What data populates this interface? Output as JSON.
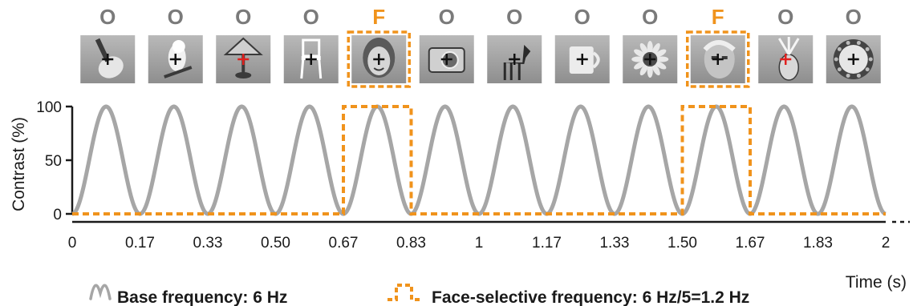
{
  "colors": {
    "base": "#a6a6a6",
    "face": "#f0931c",
    "object_label": "#7a7a7a",
    "axis": "#1a1a1a",
    "fixation_black": "#111111",
    "fixation_red": "#e0201e"
  },
  "stimuli": [
    {
      "label": "O",
      "category": "object",
      "subject": "guitar-icon",
      "cross": "black"
    },
    {
      "label": "O",
      "category": "object",
      "subject": "parrot-icon",
      "cross": "black"
    },
    {
      "label": "O",
      "category": "object",
      "subject": "lamp-icon",
      "cross": "red"
    },
    {
      "label": "O",
      "category": "object",
      "subject": "chair-icon",
      "cross": "black"
    },
    {
      "label": "F",
      "category": "face",
      "subject": "face-woman-icon",
      "cross": "black"
    },
    {
      "label": "O",
      "category": "object",
      "subject": "camera-icon",
      "cross": "black"
    },
    {
      "label": "O",
      "category": "object",
      "subject": "horse-icon",
      "cross": "black"
    },
    {
      "label": "O",
      "category": "object",
      "subject": "mug-icon",
      "cross": "black"
    },
    {
      "label": "O",
      "category": "object",
      "subject": "flower-icon",
      "cross": "black"
    },
    {
      "label": "F",
      "category": "face",
      "subject": "face-man-icon",
      "cross": "black"
    },
    {
      "label": "O",
      "category": "object",
      "subject": "pineapple-icon",
      "cross": "red"
    },
    {
      "label": "O",
      "category": "object",
      "subject": "plate-icon",
      "cross": "black"
    }
  ],
  "chart_data": {
    "type": "line",
    "ylabel": "Contrast (%)",
    "xlabel": "Time (s)",
    "xlim": [
      0,
      2
    ],
    "ylim": [
      0,
      100
    ],
    "yticks": [
      0,
      50,
      100
    ],
    "xticks": [
      0,
      0.1667,
      0.3333,
      0.5,
      0.6667,
      0.8333,
      1,
      1.1667,
      1.3333,
      1.5,
      1.6667,
      1.8333,
      2
    ],
    "xtick_labels": [
      "0",
      "0.17",
      "0.33",
      "0.50",
      "0.67",
      "0.83",
      "1",
      "1.17",
      "1.33",
      "1.50",
      "1.67",
      "1.83",
      "2"
    ],
    "series": [
      {
        "name": "Base frequency: 6 Hz",
        "kind": "sinusoid",
        "frequency_hz": 6,
        "min": 0,
        "max": 100,
        "style": "solid"
      },
      {
        "name": "Face-selective frequency: 6 Hz/5=1.2 Hz",
        "kind": "square",
        "style": "dashed",
        "x": [
          0,
          0.6667,
          0.6667,
          0.8333,
          0.8333,
          1.5,
          1.5,
          1.6667,
          1.6667,
          2
        ],
        "y": [
          0,
          0,
          100,
          100,
          0,
          0,
          100,
          100,
          0,
          0
        ]
      }
    ],
    "legend": [
      {
        "label": "Base frequency: 6 Hz"
      },
      {
        "label": "Face-selective frequency: 6 Hz/5=1.2 Hz"
      }
    ]
  }
}
